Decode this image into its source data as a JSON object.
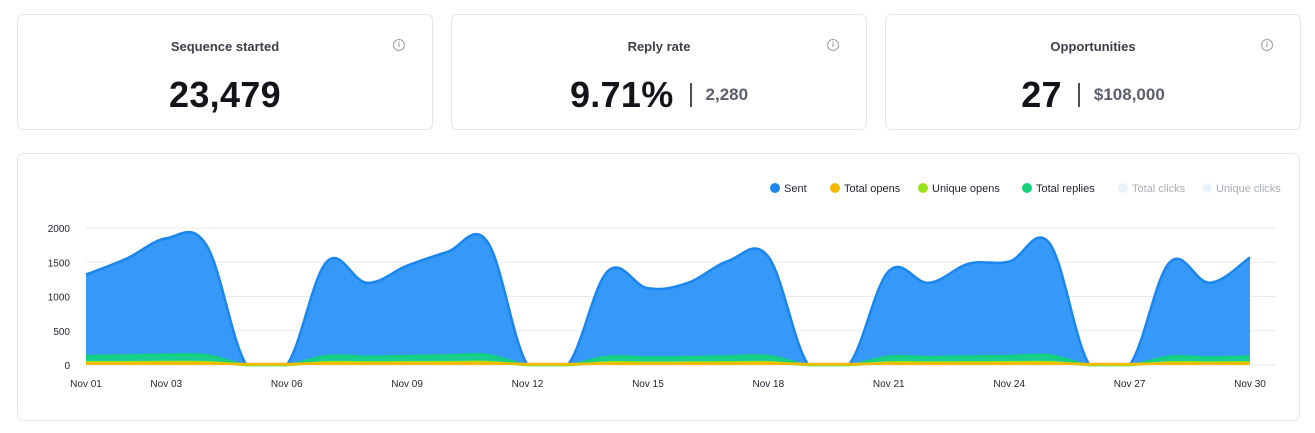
{
  "cards": [
    {
      "title": "Sequence started",
      "value": "23,479",
      "sub": ""
    },
    {
      "title": "Reply rate",
      "value": "9.71%",
      "sub": "2,280"
    },
    {
      "title": "Opportunities",
      "value": "27",
      "sub": "$108,000"
    }
  ],
  "info_icon": "info-icon",
  "chart_data": {
    "type": "area",
    "legend": [
      {
        "name": "Sent",
        "color": "#1a86f0",
        "active": true
      },
      {
        "name": "Total opens",
        "color": "#f5b800",
        "active": true
      },
      {
        "name": "Unique opens",
        "color": "#9be21d",
        "active": true
      },
      {
        "name": "Total replies",
        "color": "#14d27a",
        "active": true
      },
      {
        "name": "Total clicks",
        "color": "#eaf2fb",
        "active": false
      },
      {
        "name": "Unique clicks",
        "color": "#eaf2fb",
        "active": false
      }
    ],
    "x": [
      "Nov 01",
      "Nov 02",
      "Nov 03",
      "Nov 04",
      "Nov 05",
      "Nov 06",
      "Nov 07",
      "Nov 08",
      "Nov 09",
      "Nov 10",
      "Nov 11",
      "Nov 12",
      "Nov 13",
      "Nov 14",
      "Nov 15",
      "Nov 16",
      "Nov 17",
      "Nov 18",
      "Nov 19",
      "Nov 20",
      "Nov 21",
      "Nov 22",
      "Nov 23",
      "Nov 24",
      "Nov 25",
      "Nov 26",
      "Nov 27",
      "Nov 28",
      "Nov 29",
      "Nov 30"
    ],
    "x_tick_labels": [
      "Nov 01",
      "Nov 03",
      "Nov 06",
      "Nov 09",
      "Nov 12",
      "Nov 15",
      "Nov 18",
      "Nov 21",
      "Nov 24",
      "Nov 27",
      "Nov 30"
    ],
    "x_tick_indices": [
      0,
      2,
      5,
      8,
      11,
      14,
      17,
      20,
      23,
      26,
      29
    ],
    "y_ticks": [
      0,
      500,
      1000,
      1500,
      2000
    ],
    "ylim": [
      0,
      2000
    ],
    "series": [
      {
        "name": "Sent",
        "color": "#1a86f0",
        "fill": "#2b94f7",
        "values": [
          1320,
          1550,
          1850,
          1750,
          0,
          0,
          1510,
          1200,
          1450,
          1650,
          1800,
          0,
          0,
          1370,
          1120,
          1200,
          1520,
          1580,
          0,
          0,
          1370,
          1200,
          1480,
          1510,
          1780,
          0,
          0,
          1500,
          1200,
          1570
        ]
      },
      {
        "name": "Total replies",
        "color": "#14d27a",
        "fill": "#17d18a",
        "values": [
          130,
          140,
          150,
          140,
          0,
          0,
          130,
          120,
          130,
          140,
          145,
          0,
          0,
          120,
          110,
          115,
          125,
          130,
          0,
          0,
          120,
          115,
          125,
          130,
          140,
          0,
          0,
          120,
          110,
          125
        ]
      },
      {
        "name": "Unique opens",
        "color": "#9be21d",
        "fill": "#a6e21f",
        "values": [
          40,
          40,
          45,
          42,
          0,
          0,
          40,
          38,
          40,
          42,
          44,
          0,
          0,
          38,
          35,
          36,
          38,
          40,
          0,
          0,
          38,
          36,
          38,
          40,
          42,
          0,
          0,
          38,
          36,
          38
        ]
      },
      {
        "name": "Total opens",
        "color": "#f5b800",
        "fill": "#e9c20a",
        "values": [
          25,
          25,
          28,
          26,
          15,
          15,
          25,
          22,
          25,
          26,
          27,
          15,
          15,
          22,
          20,
          21,
          23,
          25,
          15,
          15,
          22,
          21,
          23,
          24,
          26,
          15,
          15,
          22,
          20,
          23
        ]
      }
    ]
  }
}
